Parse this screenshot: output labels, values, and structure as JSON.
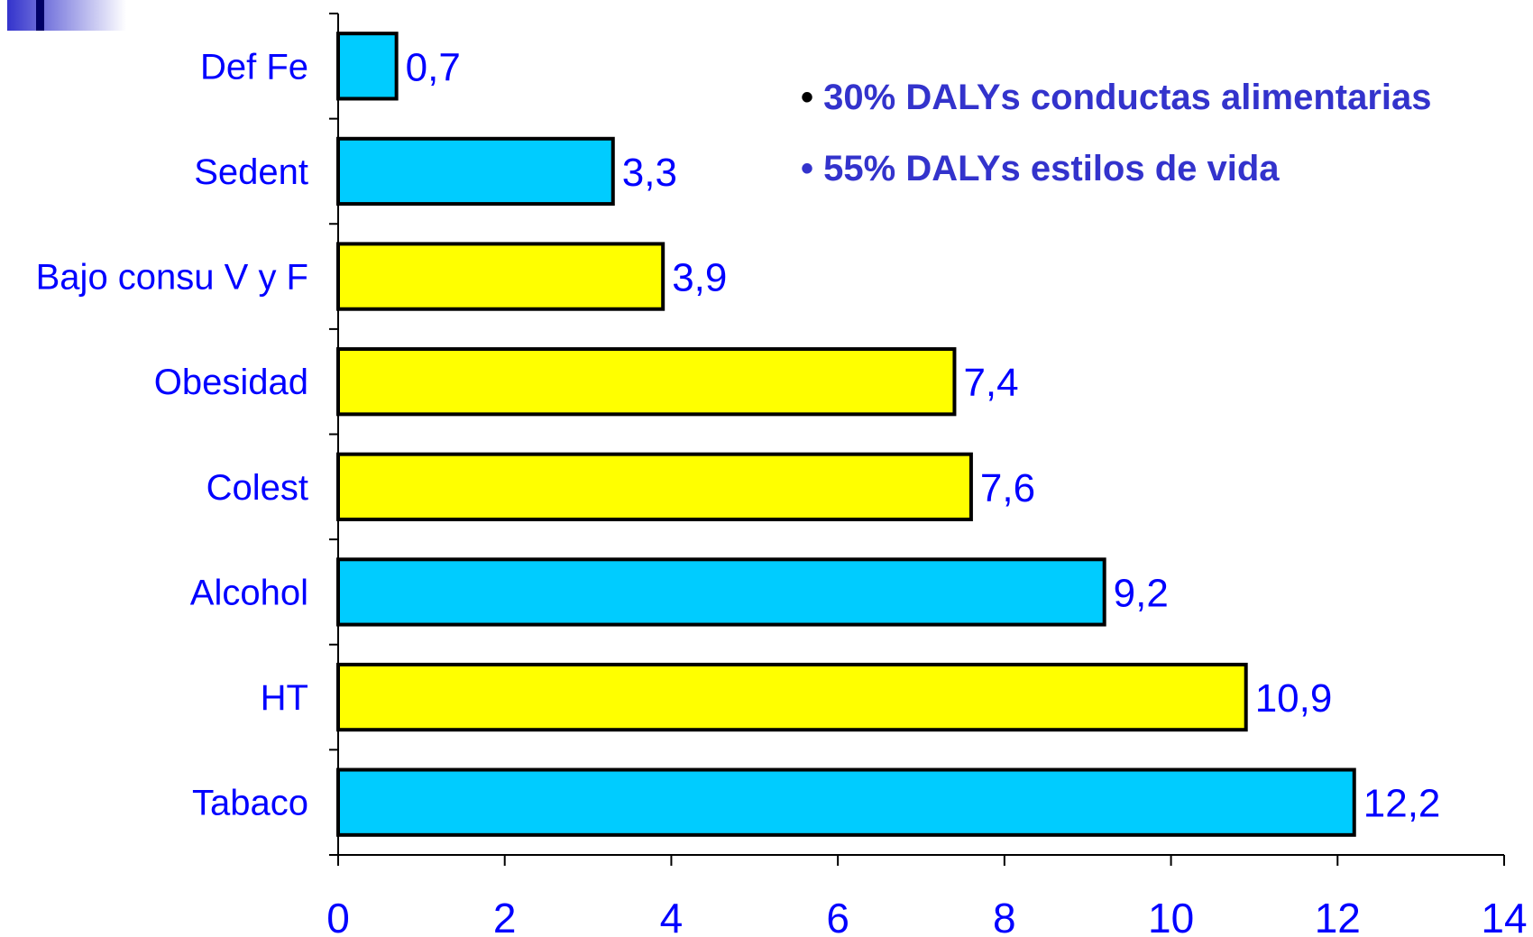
{
  "chart_data": {
    "type": "bar",
    "orientation": "horizontal",
    "categories": [
      "Def Fe",
      "Sedent",
      "Bajo consu V y F",
      "Obesidad",
      "Colest",
      "Alcohol",
      "HT",
      "Tabaco"
    ],
    "values": [
      0.7,
      3.3,
      3.9,
      7.4,
      7.6,
      9.2,
      10.9,
      12.2
    ],
    "value_labels": [
      "0,7",
      "3,3",
      "3,9",
      "7,4",
      "7,6",
      "9,2",
      "10,9",
      "12,2"
    ],
    "bar_colors": [
      "#00ccff",
      "#00ccff",
      "#ffff00",
      "#ffff00",
      "#ffff00",
      "#00ccff",
      "#ffff00",
      "#00ccff"
    ],
    "xlim": [
      0,
      14
    ],
    "x_ticks": [
      0,
      2,
      4,
      6,
      8,
      10,
      12,
      14
    ],
    "title": "",
    "xlabel": "",
    "ylabel": "",
    "grid": false,
    "legend": "none"
  },
  "annotations": {
    "note_1": {
      "bullet": "•",
      "text": "30% DALYs conductas alimentarias"
    },
    "note_2": {
      "bullet": "•",
      "text": "55% DALYs estilos de vida"
    }
  },
  "colors": {
    "label_text": "#0000ff",
    "note_text": "#3333cc",
    "bar_outline": "#000000",
    "decoration": "#3333cc"
  }
}
